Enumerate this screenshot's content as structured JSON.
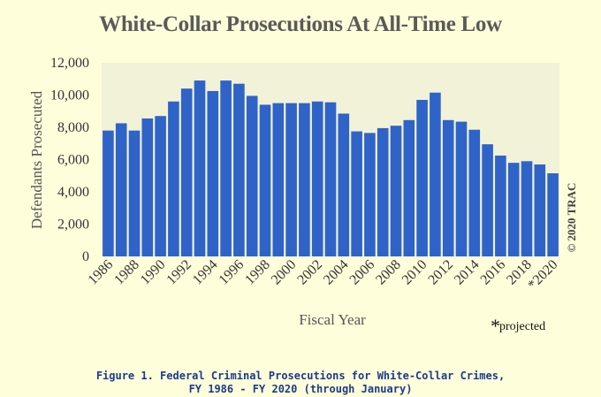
{
  "chart_data": {
    "type": "bar",
    "title": "White-Collar Prosecutions At All-Time Low",
    "xlabel": "Fiscal Year",
    "ylabel": "Defendants Prosecuted",
    "ylim": [
      0,
      12000
    ],
    "yticks": [
      "0",
      "2,000",
      "4,000",
      "6,000",
      "8,000",
      "10,000",
      "12,000"
    ],
    "ytick_values": [
      0,
      2000,
      4000,
      6000,
      8000,
      10000,
      12000
    ],
    "categories": [
      "1986",
      "1987",
      "1988",
      "1989",
      "1990",
      "1991",
      "1992",
      "1993",
      "1994",
      "1995",
      "1996",
      "1997",
      "1998",
      "1999",
      "2000",
      "2001",
      "2002",
      "2003",
      "2004",
      "2005",
      "2006",
      "2007",
      "2008",
      "2009",
      "2010",
      "2011",
      "2012",
      "2013",
      "2014",
      "2015",
      "2016",
      "2017",
      "2018",
      "2019",
      "2020"
    ],
    "xtick_labels": [
      "1986",
      "1988",
      "1990",
      "1992",
      "1994",
      "1996",
      "1998",
      "2000",
      "2002",
      "2004",
      "2006",
      "2008",
      "2010",
      "2012",
      "2014",
      "2016",
      "2018",
      "*2020"
    ],
    "xtick_categories": [
      "1986",
      "1988",
      "1990",
      "1992",
      "1994",
      "1996",
      "1998",
      "2000",
      "2002",
      "2004",
      "2006",
      "2008",
      "2010",
      "2012",
      "2014",
      "2016",
      "2018",
      "2020"
    ],
    "values": [
      7800,
      8250,
      7800,
      8550,
      8700,
      9600,
      10400,
      10900,
      10250,
      10900,
      10700,
      9950,
      9400,
      9500,
      9500,
      9500,
      9600,
      9550,
      8850,
      7750,
      7650,
      7950,
      8100,
      8450,
      9700,
      10150,
      8450,
      8350,
      7850,
      6950,
      6250,
      5800,
      5900,
      5700,
      5150
    ],
    "grid": false,
    "bar_color": "#2f63c8",
    "plot_bg": "#f2f2d8",
    "copyright": "© 2020 TRAC",
    "note_star": "*",
    "note_text": "projected"
  },
  "caption": {
    "line1": "Figure 1. Federal Criminal Prosecutions for White-Collar Crimes,",
    "line2": "FY 1986 - FY 2020 (through January)"
  },
  "colors": {
    "page_bg": "#fefedb",
    "caption_text": "#1c3a8a"
  }
}
